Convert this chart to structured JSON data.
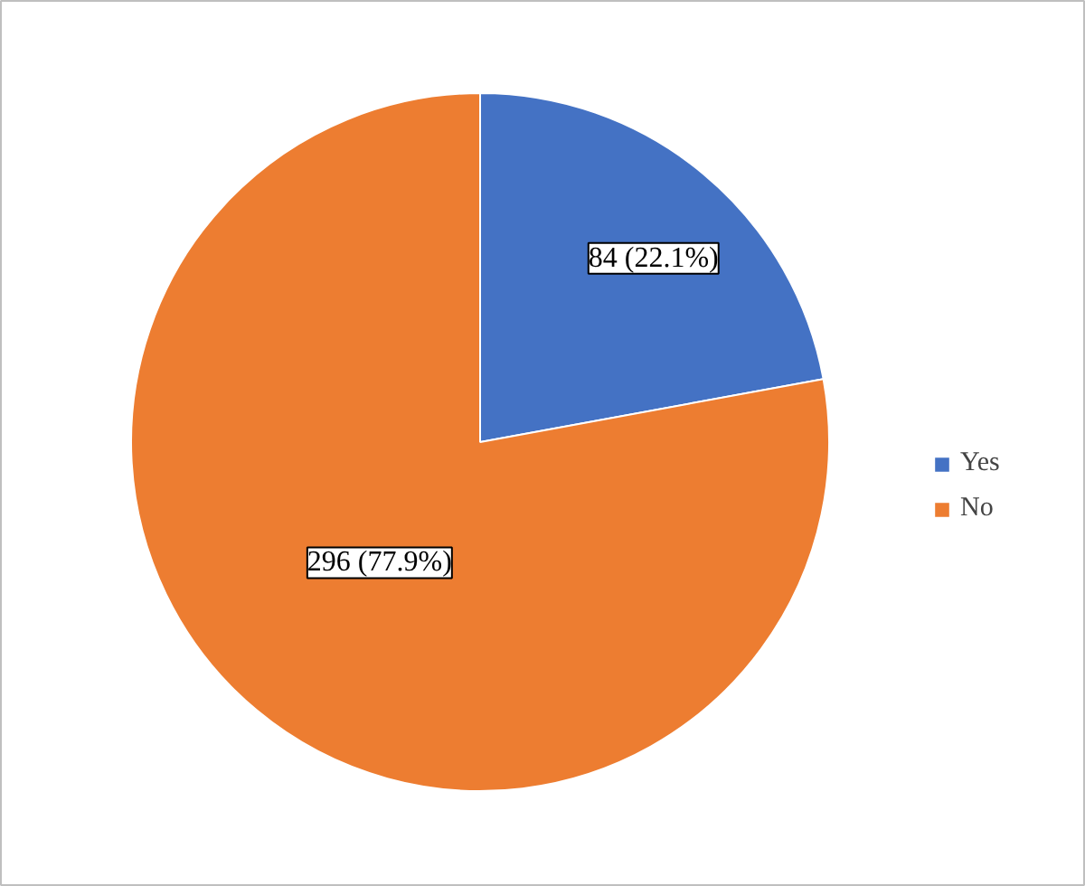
{
  "chart_data": {
    "type": "pie",
    "categories": [
      "Yes",
      "No"
    ],
    "values": [
      84,
      296
    ],
    "colors": [
      "#4472c4",
      "#ed7d31"
    ],
    "value_labels": [
      "84 (22.1%)",
      "296 (77.9%)"
    ],
    "legend": "right"
  }
}
